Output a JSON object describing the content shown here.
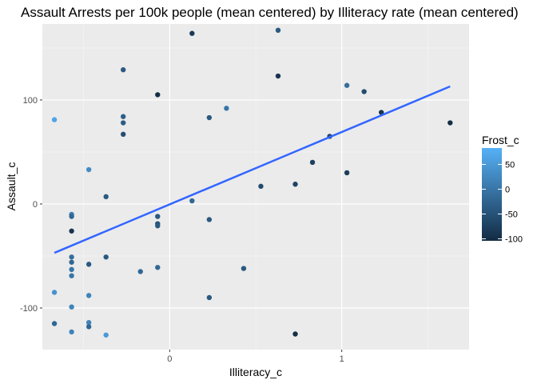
{
  "chart_data": {
    "type": "scatter",
    "title": "Assault Arrests per 100k people (mean centered) by Illiteracy rate (mean centered)",
    "xlabel": "Illiteracy_c",
    "ylabel": "Assault_c",
    "xlim": [
      -0.74,
      1.74
    ],
    "ylim": [
      -140,
      173
    ],
    "x_ticks": [
      0,
      1
    ],
    "x_tick_labels": [
      "0",
      "1"
    ],
    "y_ticks": [
      -100,
      0,
      100
    ],
    "y_tick_labels": [
      "-100",
      "0",
      "100"
    ],
    "grid": true,
    "legend": {
      "title": "Frost_c",
      "position": "right",
      "labels": [
        "50",
        "0",
        "-50",
        "-100"
      ],
      "values": [
        50,
        0,
        -50,
        -100
      ],
      "range": [
        -104,
        83
      ],
      "color_low": "#132B43",
      "color_high": "#56B1F7"
    },
    "trend_line": {
      "color": "#3366FF",
      "x": [
        -0.67,
        1.63
      ],
      "y": [
        -47,
        113
      ]
    },
    "points": [
      {
        "x": 0.13,
        "y": 164,
        "c": -85
      },
      {
        "x": 0.63,
        "y": 167,
        "c": -40
      },
      {
        "x": -0.27,
        "y": 129,
        "c": -40
      },
      {
        "x": 0.63,
        "y": 123,
        "c": -90
      },
      {
        "x": -0.07,
        "y": 105,
        "c": -100
      },
      {
        "x": 1.03,
        "y": 114,
        "c": -10
      },
      {
        "x": 1.13,
        "y": 108,
        "c": -60
      },
      {
        "x": 1.23,
        "y": 88,
        "c": -90
      },
      {
        "x": 1.63,
        "y": 78,
        "c": -100
      },
      {
        "x": 0.33,
        "y": 92,
        "c": 0
      },
      {
        "x": 0.23,
        "y": 83,
        "c": -40
      },
      {
        "x": -0.27,
        "y": 84,
        "c": -30
      },
      {
        "x": -0.27,
        "y": 78,
        "c": -35
      },
      {
        "x": -0.27,
        "y": 67,
        "c": -55
      },
      {
        "x": -0.67,
        "y": 81,
        "c": 65
      },
      {
        "x": 0.93,
        "y": 65,
        "c": -65
      },
      {
        "x": 0.83,
        "y": 40,
        "c": -75
      },
      {
        "x": -0.47,
        "y": 33,
        "c": 30
      },
      {
        "x": 1.03,
        "y": 30,
        "c": -80
      },
      {
        "x": 0.73,
        "y": 19,
        "c": -70
      },
      {
        "x": 0.53,
        "y": 17,
        "c": -60
      },
      {
        "x": -0.37,
        "y": 7,
        "c": -40
      },
      {
        "x": 0.13,
        "y": 3,
        "c": -20
      },
      {
        "x": -0.57,
        "y": -10,
        "c": 10
      },
      {
        "x": -0.57,
        "y": -12,
        "c": -20
      },
      {
        "x": -0.07,
        "y": -12,
        "c": -40
      },
      {
        "x": 0.23,
        "y": -15,
        "c": -40
      },
      {
        "x": -0.07,
        "y": -19,
        "c": -50
      },
      {
        "x": -0.07,
        "y": -21,
        "c": -40
      },
      {
        "x": -0.57,
        "y": -26,
        "c": -90
      },
      {
        "x": -0.57,
        "y": -51,
        "c": -10
      },
      {
        "x": -0.37,
        "y": -51,
        "c": -40
      },
      {
        "x": -0.57,
        "y": -56,
        "c": -20
      },
      {
        "x": -0.47,
        "y": -58,
        "c": -40
      },
      {
        "x": -0.07,
        "y": -61,
        "c": -20
      },
      {
        "x": 0.43,
        "y": -62,
        "c": -40
      },
      {
        "x": -0.57,
        "y": -63,
        "c": 0
      },
      {
        "x": -0.17,
        "y": -65,
        "c": -20
      },
      {
        "x": -0.57,
        "y": -69,
        "c": 0
      },
      {
        "x": -0.67,
        "y": -85,
        "c": 40
      },
      {
        "x": -0.47,
        "y": -88,
        "c": 20
      },
      {
        "x": 0.23,
        "y": -90,
        "c": -40
      },
      {
        "x": -0.57,
        "y": -99,
        "c": 20
      },
      {
        "x": -0.67,
        "y": -115,
        "c": -20
      },
      {
        "x": -0.47,
        "y": -114,
        "c": 20
      },
      {
        "x": -0.47,
        "y": -118,
        "c": -20
      },
      {
        "x": -0.57,
        "y": -123,
        "c": 20
      },
      {
        "x": -0.37,
        "y": -126,
        "c": 50
      },
      {
        "x": 0.73,
        "y": -125,
        "c": -100
      }
    ]
  }
}
